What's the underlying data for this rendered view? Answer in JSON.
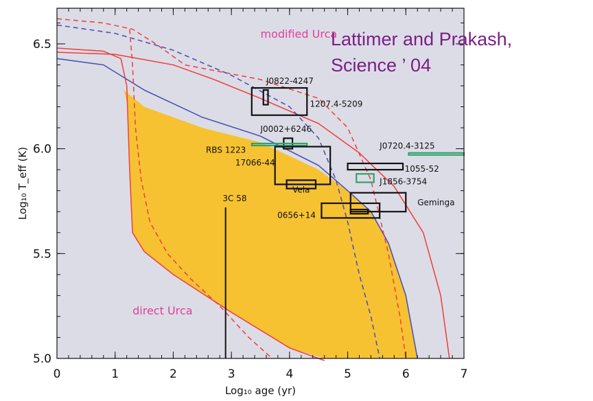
{
  "citation": {
    "line1": "Lattimer and Prakash,",
    "line2": "Science ’ 04"
  },
  "chart_data": {
    "type": "line",
    "xlabel": "Log₁₀ age (yr)",
    "ylabel": "Log₁₀ T_eff (K)",
    "xlim": [
      0,
      7
    ],
    "ylim": [
      5.0,
      6.67
    ],
    "x_ticks": [
      "0",
      "1",
      "2",
      "3",
      "4",
      "5",
      "6",
      "7"
    ],
    "y_ticks": [
      "5.0",
      "5.5",
      "6.0",
      "6.5"
    ],
    "background_color": "#dcdce6",
    "colors": {
      "fill": "#f6c232",
      "red": "#ef4444",
      "blue": "#4b54b2",
      "green": "#2fa36b",
      "label_pink": "#e0409a",
      "box": "#111111"
    },
    "region_labels": [
      {
        "text": "modified Urca",
        "x": 3.5,
        "y": 6.53
      },
      {
        "text": "direct Urca",
        "x": 1.3,
        "y": 5.21
      }
    ],
    "series": [
      {
        "style": "red-solid",
        "points": [
          [
            0,
            6.48
          ],
          [
            0.8,
            6.465
          ],
          [
            1.1,
            6.43
          ],
          [
            1.2,
            6.3
          ],
          [
            1.25,
            5.9
          ],
          [
            1.3,
            5.6
          ],
          [
            1.5,
            5.51
          ],
          [
            2.0,
            5.4
          ],
          [
            3.0,
            5.22
          ],
          [
            4.0,
            5.05
          ],
          [
            4.6,
            4.99
          ]
        ]
      },
      {
        "style": "red-solid",
        "points": [
          [
            0,
            6.46
          ],
          [
            1.0,
            6.45
          ],
          [
            2.0,
            6.4
          ],
          [
            2.7,
            6.33
          ],
          [
            3.5,
            6.24
          ],
          [
            4.5,
            6.12
          ],
          [
            5.2,
            5.98
          ],
          [
            5.8,
            5.82
          ],
          [
            6.3,
            5.6
          ],
          [
            6.6,
            5.3
          ],
          [
            6.75,
            5.0
          ]
        ]
      },
      {
        "style": "blue-solid",
        "points": [
          [
            0,
            6.43
          ],
          [
            0.8,
            6.4
          ],
          [
            1.5,
            6.28
          ],
          [
            2.5,
            6.15
          ],
          [
            3.5,
            6.06
          ],
          [
            4.5,
            5.92
          ],
          [
            5.0,
            5.8
          ],
          [
            5.4,
            5.7
          ],
          [
            5.7,
            5.55
          ],
          [
            6.0,
            5.3
          ],
          [
            6.2,
            5.0
          ]
        ]
      },
      {
        "style": "red-dashed",
        "points": [
          [
            0,
            6.62
          ],
          [
            0.8,
            6.6
          ],
          [
            1.3,
            6.57
          ],
          [
            1.7,
            6.5
          ],
          [
            2.2,
            6.4
          ],
          [
            3.5,
            6.33
          ],
          [
            4.5,
            6.24
          ],
          [
            5.0,
            6.1
          ],
          [
            5.4,
            5.85
          ],
          [
            5.7,
            5.5
          ],
          [
            5.9,
            5.2
          ],
          [
            6.0,
            5.0
          ]
        ]
      },
      {
        "style": "blue-dashed",
        "points": [
          [
            0,
            6.59
          ],
          [
            1.0,
            6.55
          ],
          [
            2.0,
            6.47
          ],
          [
            3.0,
            6.35
          ],
          [
            4.0,
            6.2
          ],
          [
            4.5,
            6.05
          ],
          [
            4.8,
            5.85
          ],
          [
            5.0,
            5.65
          ],
          [
            5.2,
            5.4
          ],
          [
            5.4,
            5.2
          ],
          [
            5.55,
            5.0
          ]
        ]
      },
      {
        "style": "red-dashed",
        "points": [
          [
            1.25,
            6.57
          ],
          [
            1.3,
            6.4
          ],
          [
            1.35,
            6.1
          ],
          [
            1.45,
            5.85
          ],
          [
            1.6,
            5.65
          ],
          [
            1.9,
            5.5
          ],
          [
            2.3,
            5.38
          ],
          [
            2.8,
            5.25
          ],
          [
            3.3,
            5.1
          ],
          [
            3.7,
            5.0
          ]
        ]
      }
    ],
    "region": {
      "upper": [
        [
          1.15,
          6.28
        ],
        [
          1.5,
          6.2
        ],
        [
          2.5,
          6.1
        ],
        [
          3.5,
          6.03
        ],
        [
          4.5,
          5.9
        ],
        [
          5.0,
          5.8
        ],
        [
          5.4,
          5.7
        ],
        [
          5.7,
          5.55
        ],
        [
          6.0,
          5.3
        ],
        [
          6.2,
          5.0
        ]
      ],
      "lower": [
        [
          1.15,
          6.28
        ],
        [
          1.22,
          6.2
        ],
        [
          1.3,
          5.6
        ],
        [
          1.5,
          5.51
        ],
        [
          2.0,
          5.4
        ],
        [
          3.0,
          5.22
        ],
        [
          4.0,
          5.05
        ],
        [
          4.6,
          5.0
        ]
      ]
    },
    "boxes": [
      {
        "name": "J0822-4247",
        "x": [
          3.35,
          4.3
        ],
        "y": [
          6.16,
          6.29
        ],
        "color": "box",
        "label_x": 3.6,
        "label_y": 6.31,
        "anchor": "start"
      },
      {
        "name": "J0822-4247-marker",
        "x": [
          3.55,
          3.63
        ],
        "y": [
          6.21,
          6.28
        ],
        "color": "box"
      },
      {
        "name": "1207.4-5209",
        "x": [
          4.3,
          4.3
        ],
        "y": [
          6.22,
          6.22
        ],
        "color": "none",
        "label_x": 4.35,
        "label_y": 6.2,
        "anchor": "start"
      },
      {
        "name": "J0002+6246",
        "x": [
          3.9,
          4.05
        ],
        "y": [
          6.0,
          6.05
        ],
        "color": "box",
        "label_x": 3.5,
        "label_y": 6.08,
        "anchor": "start"
      },
      {
        "name": "RBS 1223",
        "x": [
          3.35,
          4.3
        ],
        "y": [
          6.02,
          6.025
        ],
        "color": "green",
        "label_x": 3.25,
        "label_y": 5.98,
        "anchor": "end"
      },
      {
        "name": "17066-44",
        "x": [
          3.75,
          4.7
        ],
        "y": [
          5.83,
          6.01
        ],
        "color": "box",
        "label_x": 3.75,
        "label_y": 5.92,
        "anchor": "end"
      },
      {
        "name": "Vela",
        "x": [
          3.95,
          4.45
        ],
        "y": [
          5.81,
          5.85
        ],
        "color": "box",
        "label_x": 4.2,
        "label_y": 5.79,
        "anchor": "middle"
      },
      {
        "name": "J0720.4-3125",
        "x": [
          6.05,
          7.0
        ],
        "y": [
          5.975,
          5.98
        ],
        "color": "green",
        "label_x": 5.55,
        "label_y": 6.0,
        "anchor": "start"
      },
      {
        "name": "1055-52",
        "x": [
          5.0,
          5.95
        ],
        "y": [
          5.9,
          5.93
        ],
        "color": "box",
        "label_x": 5.98,
        "label_y": 5.89,
        "anchor": "start"
      },
      {
        "name": "J1856-3754",
        "x": [
          5.15,
          5.45
        ],
        "y": [
          5.84,
          5.88
        ],
        "color": "green",
        "label_x": 5.55,
        "label_y": 5.83,
        "anchor": "start"
      },
      {
        "name": "Geminga",
        "x": [
          5.05,
          6.0
        ],
        "y": [
          5.7,
          5.79
        ],
        "color": "box",
        "label_x": 6.2,
        "label_y": 5.73,
        "anchor": "start"
      },
      {
        "name": "0656+14",
        "x": [
          4.55,
          5.55
        ],
        "y": [
          5.67,
          5.74
        ],
        "color": "box",
        "label_x": 4.45,
        "label_y": 5.67,
        "anchor": "end"
      },
      {
        "name": "0656+14-inner",
        "x": [
          5.05,
          5.35
        ],
        "y": [
          5.69,
          5.71
        ],
        "color": "box"
      }
    ],
    "labels": {
      "1207": "1207.4-5209",
      "3C58": "3C 58"
    },
    "vertical_line": {
      "name": "3C 58",
      "x": 2.9,
      "y_top": 5.72,
      "label_x": 2.85,
      "label_y": 5.75
    }
  }
}
